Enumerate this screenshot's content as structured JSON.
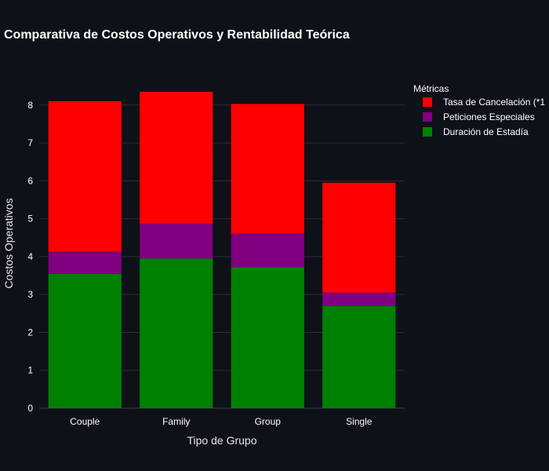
{
  "chart_data": {
    "type": "bar",
    "stacked": true,
    "title": "Comparativa de Costos Operativos y Rentabilidad Teórica",
    "xlabel": "Tipo de Grupo",
    "ylabel": "Costos Operativos",
    "categories": [
      "Couple",
      "Family",
      "Group",
      "Single"
    ],
    "ylim": [
      0,
      8.7
    ],
    "yticks": [
      0,
      1,
      2,
      3,
      4,
      5,
      6,
      7,
      8
    ],
    "grid": true,
    "legend": {
      "title": "Métricas",
      "placement": "right-top",
      "entries": [
        {
          "label": "Tasa de Cancelación (*1",
          "color": "#ff0000"
        },
        {
          "label": "Peticiones Especiales",
          "color": "#800080"
        },
        {
          "label": "Duración de Estadía",
          "color": "#008000"
        }
      ]
    },
    "series": [
      {
        "name": "Duración de Estadía",
        "color": "#008000",
        "values": [
          3.55,
          3.95,
          3.72,
          2.7
        ]
      },
      {
        "name": "Peticiones Especiales",
        "color": "#800080",
        "values": [
          0.58,
          0.92,
          0.89,
          0.35
        ]
      },
      {
        "name": "Tasa de Cancelación (*1",
        "color": "#ff0000",
        "values": [
          3.97,
          3.48,
          3.42,
          2.9
        ]
      }
    ]
  }
}
